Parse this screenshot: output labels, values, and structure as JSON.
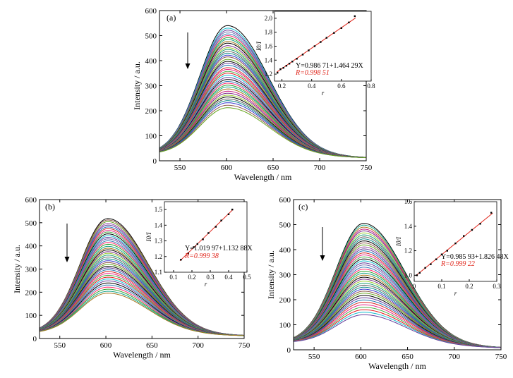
{
  "chart_data": [
    {
      "type": "line",
      "panel_label": "(a)",
      "xlabel": "Wavelength / nm",
      "ylabel": "Intensity / a.u.",
      "xlim": [
        528,
        750
      ],
      "ylim": [
        0,
        600
      ],
      "xticks": [
        550,
        600,
        650,
        700,
        750
      ],
      "yticks": [
        0,
        100,
        200,
        300,
        400,
        500,
        600
      ],
      "peak_x": 601,
      "peak_intensities_top_to_bottom": [
        540,
        530,
        522,
        515,
        507,
        500,
        492,
        485,
        477,
        470,
        460,
        452,
        445,
        437,
        430,
        422,
        415,
        405,
        397,
        390,
        382,
        372,
        365,
        357,
        350,
        342,
        333,
        325,
        317,
        310,
        302,
        295,
        287,
        278,
        270,
        262,
        255,
        247,
        240,
        232,
        222,
        212
      ],
      "start_intensity": 25,
      "end_intensity": 12,
      "arrow": "down",
      "inset": {
        "type": "scatter",
        "xlabel": "r",
        "ylabel": "I0/I",
        "xlim": [
          0.15,
          0.8
        ],
        "ylim": [
          1.1,
          2.1
        ],
        "xticks": [
          0.2,
          0.4,
          0.6,
          0.8
        ],
        "yticks": [
          1.2,
          1.4,
          1.6,
          1.8,
          2.0
        ],
        "ytick_labels": [
          "1.2",
          "1.4",
          "1.6",
          "1.8",
          "2.0"
        ],
        "fit_intercept": 0.98671,
        "fit_slope": 1.46429,
        "x": [
          0.17,
          0.19,
          0.21,
          0.23,
          0.25,
          0.27,
          0.3,
          0.34,
          0.38,
          0.42,
          0.46,
          0.5,
          0.55,
          0.6,
          0.65,
          0.69
        ],
        "y": [
          1.22,
          1.27,
          1.29,
          1.32,
          1.35,
          1.38,
          1.42,
          1.48,
          1.54,
          1.6,
          1.66,
          1.72,
          1.79,
          1.86,
          1.94,
          2.03
        ],
        "equation": "Y=0.986 71+1.464 29X",
        "r_value": "R=0.998 51"
      }
    },
    {
      "type": "line",
      "panel_label": "(b)",
      "xlabel": "Wavelength / nm",
      "ylabel": "Intensity / a.u.",
      "xlim": [
        528,
        750
      ],
      "ylim": [
        0,
        600
      ],
      "xticks": [
        550,
        600,
        650,
        700,
        750
      ],
      "yticks": [
        0,
        100,
        200,
        300,
        400,
        500,
        600
      ],
      "peak_x": 602,
      "peak_intensities_top_to_bottom": [
        518,
        512,
        505,
        497,
        490,
        482,
        475,
        467,
        460,
        452,
        444,
        437,
        430,
        422,
        415,
        407,
        398,
        390,
        383,
        375,
        368,
        360,
        352,
        344,
        336,
        328,
        320,
        312,
        305,
        297,
        289,
        281,
        273,
        265,
        257,
        249,
        240,
        231,
        222,
        213,
        204,
        196
      ],
      "start_intensity": 22,
      "end_intensity": 12,
      "arrow": "down",
      "inset": {
        "type": "scatter",
        "xlabel": "r",
        "ylabel": "I0/I",
        "xlim": [
          0.05,
          0.5
        ],
        "ylim": [
          1.1,
          1.55
        ],
        "xticks": [
          0.1,
          0.2,
          0.3,
          0.4,
          0.5
        ],
        "yticks": [
          1.1,
          1.2,
          1.3,
          1.4,
          1.5
        ],
        "ytick_labels": [
          "1.1",
          "1.2",
          "1.3",
          "1.4",
          "1.5"
        ],
        "fit_intercept": 1.01997,
        "fit_slope": 1.13288,
        "x": [
          0.14,
          0.18,
          0.21,
          0.23,
          0.26,
          0.29,
          0.33,
          0.36,
          0.4,
          0.42
        ],
        "y": [
          1.18,
          1.22,
          1.26,
          1.28,
          1.31,
          1.35,
          1.39,
          1.43,
          1.47,
          1.5
        ],
        "equation": "Y=1.019 97+1.132 88X",
        "r_value": "R=0.999 38"
      }
    },
    {
      "type": "line",
      "panel_label": "(c)",
      "xlabel": "Wavelength / nm",
      "ylabel": "Intensity / a.u.",
      "xlim": [
        528,
        750
      ],
      "ylim": [
        0,
        600
      ],
      "xticks": [
        550,
        600,
        650,
        700,
        750
      ],
      "yticks": [
        0,
        100,
        200,
        300,
        400,
        500,
        600
      ],
      "peak_x": 603,
      "peak_intensities_top_to_bottom": [
        505,
        498,
        490,
        482,
        475,
        467,
        459,
        451,
        443,
        435,
        427,
        419,
        411,
        403,
        395,
        387,
        379,
        371,
        363,
        355,
        347,
        339,
        330,
        322,
        314,
        306,
        298,
        290,
        282,
        274,
        266,
        258,
        250,
        242,
        234,
        226,
        217,
        208,
        199,
        190,
        180,
        170,
        160,
        150,
        140
      ],
      "start_intensity": 28,
      "end_intensity": 8,
      "arrow": "down",
      "inset": {
        "type": "scatter",
        "xlabel": "r",
        "ylabel": "I0/I",
        "xlim": [
          0,
          0.3
        ],
        "ylim": [
          0.95,
          1.6
        ],
        "xticks": [
          0,
          0.1,
          0.2,
          0.3
        ],
        "yticks": [
          1.0,
          1.2,
          1.4,
          1.6
        ],
        "ytick_labels": [
          "1.0",
          "1.2",
          "1.4",
          "1.6"
        ],
        "fit_intercept": 0.98593,
        "fit_slope": 1.82648,
        "x": [
          0.01,
          0.02,
          0.04,
          0.06,
          0.08,
          0.1,
          0.12,
          0.15,
          0.18,
          0.21,
          0.24,
          0.28
        ],
        "y": [
          1.0,
          1.02,
          1.06,
          1.09,
          1.13,
          1.17,
          1.2,
          1.26,
          1.32,
          1.37,
          1.42,
          1.51
        ],
        "equation": "Y=0.985 93+1.826 48X",
        "r_value": "R=0.999 22"
      }
    }
  ]
}
